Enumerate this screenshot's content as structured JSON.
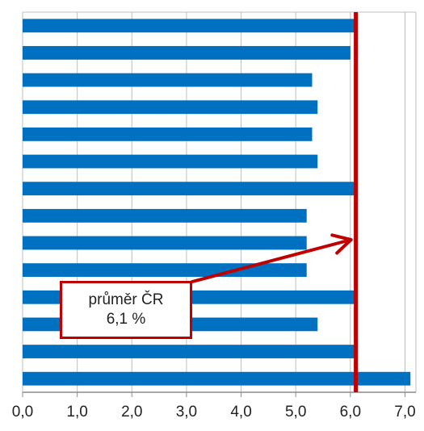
{
  "chart_data": {
    "type": "bar",
    "orientation": "horizontal",
    "categories": [
      "",
      "",
      "",
      "",
      "",
      "",
      "",
      "",
      "",
      "",
      "",
      "",
      "",
      ""
    ],
    "values": [
      6.1,
      6.0,
      5.3,
      5.4,
      5.3,
      5.4,
      6.1,
      5.2,
      5.2,
      5.2,
      6.1,
      5.4,
      6.1,
      7.1
    ],
    "x_ticks": [
      "0,0",
      "1,0",
      "2,0",
      "3,0",
      "4,0",
      "5,0",
      "6,0",
      "7,0"
    ],
    "xlim": [
      0,
      7.2
    ],
    "grid": true,
    "bar_color": "#0070c0",
    "reference_line": {
      "value": 6.1,
      "color": "#c00000",
      "label_line1": "průměr ČR",
      "label_line2": "6,1 %"
    }
  }
}
